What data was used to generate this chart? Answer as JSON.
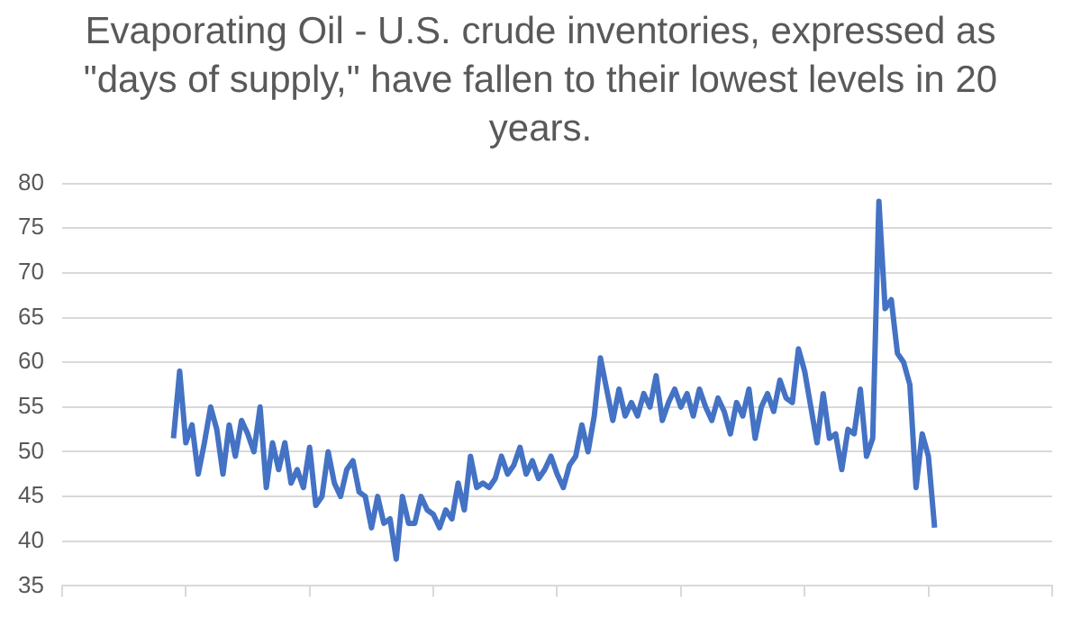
{
  "chart_data": {
    "type": "line",
    "title": "Evaporating Oil - U.S. crude inventories, expressed as \"days of supply,\" have fallen to their lowest levels in 20 years.",
    "categories": [
      null,
      null,
      null,
      null,
      null,
      null,
      null,
      null,
      null,
      null,
      null,
      null,
      null,
      null,
      null,
      null,
      null,
      null,
      null,
      null,
      null,
      null,
      null,
      null,
      null,
      null,
      null,
      null,
      null,
      null,
      null,
      null,
      null,
      null,
      null,
      null,
      null,
      null,
      null,
      null,
      null,
      null,
      null,
      null,
      null,
      null,
      null,
      null,
      null,
      null,
      null,
      null,
      null,
      null,
      null,
      null,
      null,
      null,
      null,
      null,
      null,
      null,
      null,
      null,
      null,
      null,
      null,
      null,
      null,
      null,
      null,
      null,
      null,
      null,
      null,
      null,
      null,
      null,
      null,
      null,
      null,
      null,
      null,
      null,
      null,
      null,
      null,
      null,
      null,
      null,
      null,
      null,
      null,
      null,
      null,
      null,
      null,
      null,
      null,
      null,
      null,
      null,
      null,
      null,
      null,
      null,
      null,
      null,
      null,
      null,
      null,
      null,
      null,
      null,
      null,
      null,
      null,
      null,
      null,
      null,
      null,
      null,
      null,
      null,
      null,
      null,
      null,
      null,
      null,
      null,
      null,
      null,
      null,
      null,
      null,
      null,
      null,
      null,
      null,
      null,
      null,
      null,
      null,
      null,
      null,
      null,
      null,
      null,
      null,
      null,
      null,
      null,
      null,
      null,
      null,
      null,
      null,
      null,
      null,
      null,
      null
    ],
    "series": [
      {
        "color": "#4472c4",
        "values": [
          null,
          null,
          null,
          null,
          null,
          null,
          null,
          null,
          null,
          null,
          null,
          null,
          null,
          null,
          null,
          null,
          null,
          null,
          51.5,
          59,
          51,
          53,
          47.5,
          51,
          55,
          52.5,
          47.5,
          53,
          49.5,
          53.5,
          52,
          50,
          55,
          46,
          51,
          48,
          51,
          46.5,
          48,
          46,
          50.5,
          44,
          45,
          50,
          46.5,
          45,
          48,
          49,
          45.5,
          45,
          41.5,
          45,
          42,
          42.5,
          38,
          45,
          42,
          42,
          45,
          43.5,
          43,
          41.5,
          43.5,
          42.5,
          46.5,
          43.5,
          49.5,
          46,
          46.5,
          46,
          47,
          49.5,
          47.5,
          48.5,
          50.5,
          47.5,
          49,
          47,
          48,
          49.5,
          47.5,
          46,
          48.5,
          49.5,
          53,
          50,
          54,
          60.5,
          57,
          53.5,
          57,
          54,
          55.5,
          54,
          56.5,
          55,
          58.5,
          53.5,
          55.5,
          57,
          55,
          56.5,
          54,
          57,
          55,
          53.5,
          56,
          54.5,
          52,
          55.5,
          54,
          57,
          51.5,
          55,
          56.5,
          54.5,
          58,
          56,
          55.5,
          61.5,
          59,
          55,
          51,
          56.5,
          51.5,
          52,
          48,
          52.5,
          52,
          57,
          49.5,
          51.5,
          78,
          66,
          67,
          61,
          60,
          57.5,
          46,
          52,
          49.5,
          41.5,
          null,
          null,
          null,
          null,
          null,
          null,
          null,
          null,
          null,
          null,
          null,
          null,
          null,
          null,
          null,
          null,
          null,
          null,
          null
        ]
      }
    ],
    "ylim": [
      35,
      80
    ],
    "yticks": [
      35,
      40,
      45,
      50,
      55,
      60,
      65,
      70,
      75,
      80
    ],
    "grid": "y",
    "legend": false
  }
}
